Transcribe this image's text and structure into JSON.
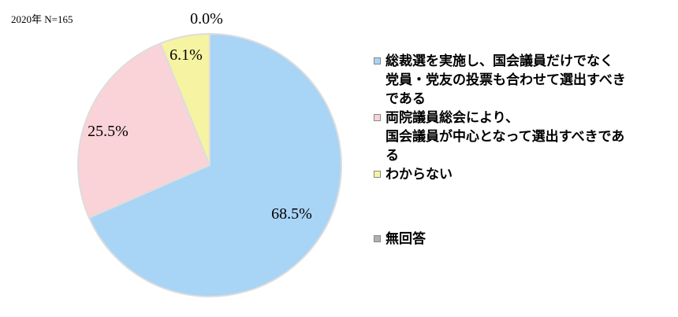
{
  "note": "2020年  N=165",
  "chart_data": {
    "type": "pie",
    "start": "top",
    "direction": "clockwise",
    "legend_position": "right",
    "slices": [
      {
        "label": "総裁選を実施し、国会議員だけでなく\n党員・党友の投票も合わせて選出すべき\nである",
        "value": 68.5,
        "display": "68.5%",
        "color": "#a8d4f6"
      },
      {
        "label": "両院議員総会により、\n国会議員が中心となって選出すべきであ\nる",
        "value": 25.5,
        "display": "25.5%",
        "color": "#f9d3d7"
      },
      {
        "label": "わからない",
        "value": 6.1,
        "display": "6.1%",
        "color": "#f6f3a2"
      },
      {
        "label": "無回答",
        "value": 0.0,
        "display": "0.0%",
        "color": "#b0b0b0"
      }
    ]
  }
}
